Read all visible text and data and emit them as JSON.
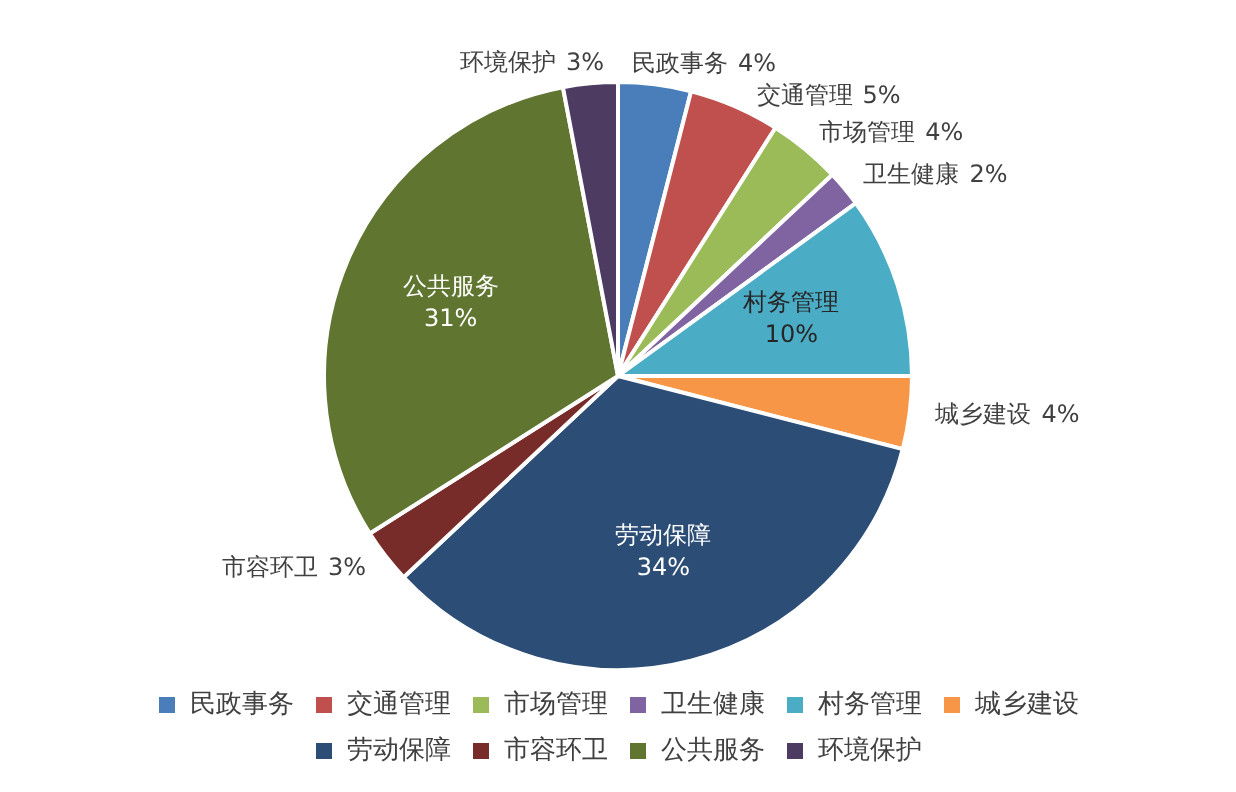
{
  "chart_data": {
    "type": "pie",
    "categories": [
      "民政事务",
      "交通管理",
      "市场管理",
      "卫生健康",
      "村务管理",
      "城乡建设",
      "劳动保障",
      "市容环卫",
      "公共服务",
      "环境保护"
    ],
    "values": [
      4,
      5,
      4,
      2,
      10,
      4,
      34,
      3,
      31,
      3
    ],
    "value_labels": [
      "4%",
      "5%",
      "4%",
      "2%",
      "10%",
      "4%",
      "34%",
      "3%",
      "31%",
      "3%"
    ],
    "colors": [
      "#4a7ebb",
      "#c0504d",
      "#9bbb59",
      "#8064a2",
      "#4bacc6",
      "#f79646",
      "#2c4d75",
      "#772c2a",
      "#5f7530",
      "#4d3b62"
    ],
    "legend": "bottom"
  }
}
